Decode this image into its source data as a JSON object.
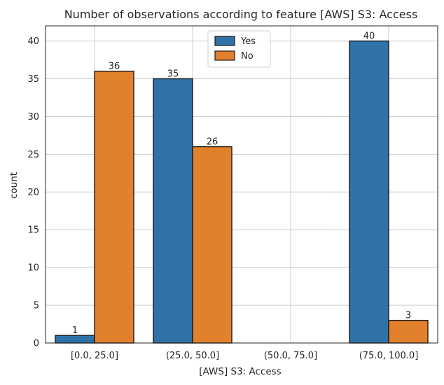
{
  "chart_data": {
    "type": "bar",
    "title": "Number of observations according to feature [AWS] S3: Access",
    "xlabel": "[AWS] S3: Access",
    "ylabel": "count",
    "categories": [
      "[0.0, 25.0]",
      "(25.0, 50.0]",
      "(50.0, 75.0]",
      "(75.0, 100.0]"
    ],
    "series": [
      {
        "name": "Yes",
        "values": [
          1,
          35,
          0,
          40
        ],
        "color": "#2e72a8"
      },
      {
        "name": "No",
        "values": [
          36,
          26,
          0,
          3
        ],
        "color": "#e2812c"
      }
    ],
    "data_labels": [
      [
        "1",
        "36"
      ],
      [
        "35",
        "26"
      ],
      [
        "",
        ""
      ],
      [
        "40",
        "3"
      ]
    ],
    "ylim": [
      0,
      42
    ],
    "yticks": [
      0,
      5,
      10,
      15,
      20,
      25,
      30,
      35,
      40
    ],
    "grid": true,
    "legend_position": "top-center"
  }
}
